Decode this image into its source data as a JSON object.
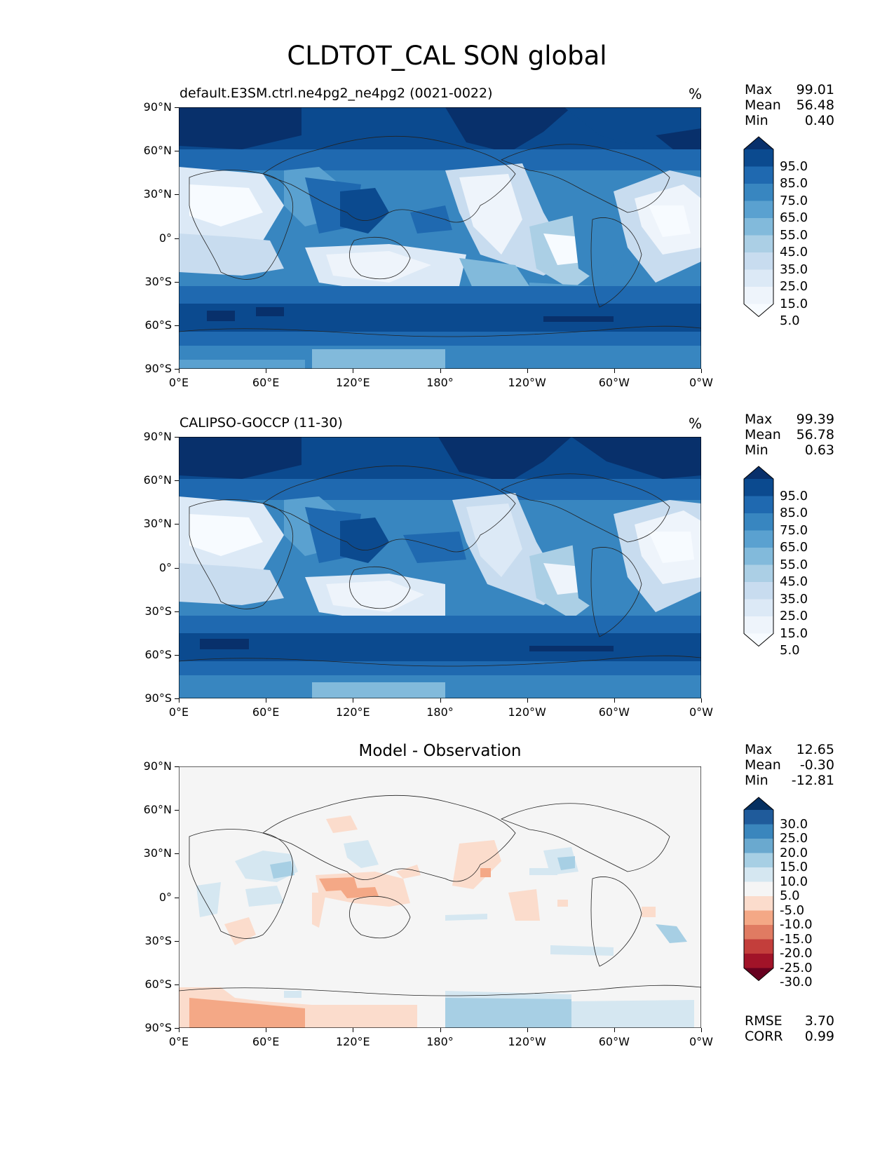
{
  "figure": {
    "title": "CLDTOT_CAL SON global"
  },
  "panels": [
    {
      "id": "model",
      "title_left": "default.E3SM.ctrl.ne4pg2_ne4pg2 (0021-0022)",
      "title_right": "%",
      "stats": [
        {
          "label": "Max",
          "value": "99.01"
        },
        {
          "label": "Mean",
          "value": "56.48"
        },
        {
          "label": "Min",
          "value": "0.40"
        }
      ]
    },
    {
      "id": "obs",
      "title_left": "CALIPSO-GOCCP (11-30)",
      "title_right": "%",
      "stats": [
        {
          "label": "Max",
          "value": "99.39"
        },
        {
          "label": "Mean",
          "value": "56.78"
        },
        {
          "label": "Min",
          "value": "0.63"
        }
      ]
    },
    {
      "id": "diff",
      "title_center": "Model - Observation",
      "stats": [
        {
          "label": "Max",
          "value": "12.65"
        },
        {
          "label": "Mean",
          "value": "-0.30"
        },
        {
          "label": "Min",
          "value": "-12.81"
        }
      ],
      "metrics": [
        {
          "label": "RMSE",
          "value": "3.70"
        },
        {
          "label": "CORR",
          "value": "0.99"
        }
      ]
    }
  ],
  "colorbars": {
    "field": {
      "ticks": [
        "95.0",
        "85.0",
        "75.0",
        "65.0",
        "55.0",
        "45.0",
        "35.0",
        "25.0",
        "15.0",
        "5.0"
      ],
      "colors": [
        "#08306b",
        "#0b4a8f",
        "#1f69b0",
        "#3886c0",
        "#5aa1d0",
        "#82badb",
        "#abcfe5",
        "#c8dcef",
        "#dce9f6",
        "#eef4fb",
        "#f7fbff"
      ]
    },
    "diff": {
      "ticks": [
        "30.0",
        "25.0",
        "20.0",
        "15.0",
        "10.0",
        "5.0",
        "-5.0",
        "-10.0",
        "-15.0",
        "-20.0",
        "-25.0",
        "-30.0"
      ],
      "colors": [
        "#053061",
        "#1f5b9b",
        "#3a86bd",
        "#6aa9cf",
        "#a7cfe4",
        "#d5e7f1",
        "#f5f5f5",
        "#fbdccc",
        "#f4a886",
        "#e07b62",
        "#c33e3b",
        "#a11328",
        "#67001f"
      ]
    }
  },
  "chart_data": [
    {
      "type": "heatmap",
      "title": "default.E3SM.ctrl.ne4pg2_ne4pg2 (0021-0022)",
      "units": "%",
      "xlabel": "",
      "ylabel": "",
      "xlim": [
        0,
        360
      ],
      "ylim": [
        -90,
        90
      ],
      "x_ticks": [
        "0°E",
        "60°E",
        "120°E",
        "180°",
        "120°W",
        "60°W",
        "0°W"
      ],
      "y_ticks": [
        "90°N",
        "60°N",
        "30°N",
        "0°",
        "30°S",
        "60°S",
        "90°S"
      ],
      "levels": [
        5,
        15,
        25,
        35,
        45,
        55,
        65,
        75,
        85,
        95
      ],
      "summary": {
        "max": 99.01,
        "mean": 56.48,
        "min": 0.4
      }
    },
    {
      "type": "heatmap",
      "title": "CALIPSO-GOCCP (11-30)",
      "units": "%",
      "xlabel": "",
      "ylabel": "",
      "xlim": [
        0,
        360
      ],
      "ylim": [
        -90,
        90
      ],
      "x_ticks": [
        "0°E",
        "60°E",
        "120°E",
        "180°",
        "120°W",
        "60°W",
        "0°W"
      ],
      "y_ticks": [
        "90°N",
        "60°N",
        "30°N",
        "0°",
        "30°S",
        "60°S",
        "90°S"
      ],
      "levels": [
        5,
        15,
        25,
        35,
        45,
        55,
        65,
        75,
        85,
        95
      ],
      "summary": {
        "max": 99.39,
        "mean": 56.78,
        "min": 0.63
      }
    },
    {
      "type": "heatmap",
      "title": "Model - Observation",
      "xlabel": "",
      "ylabel": "",
      "xlim": [
        0,
        360
      ],
      "ylim": [
        -90,
        90
      ],
      "x_ticks": [
        "0°E",
        "60°E",
        "120°E",
        "180°",
        "120°W",
        "60°W",
        "0°W"
      ],
      "y_ticks": [
        "90°N",
        "60°N",
        "30°N",
        "0°",
        "30°S",
        "60°S",
        "90°S"
      ],
      "levels": [
        -30,
        -25,
        -20,
        -15,
        -10,
        -5,
        5,
        10,
        15,
        20,
        25,
        30
      ],
      "summary": {
        "max": 12.65,
        "mean": -0.3,
        "min": -12.81,
        "rmse": 3.7,
        "corr": 0.99
      }
    }
  ]
}
